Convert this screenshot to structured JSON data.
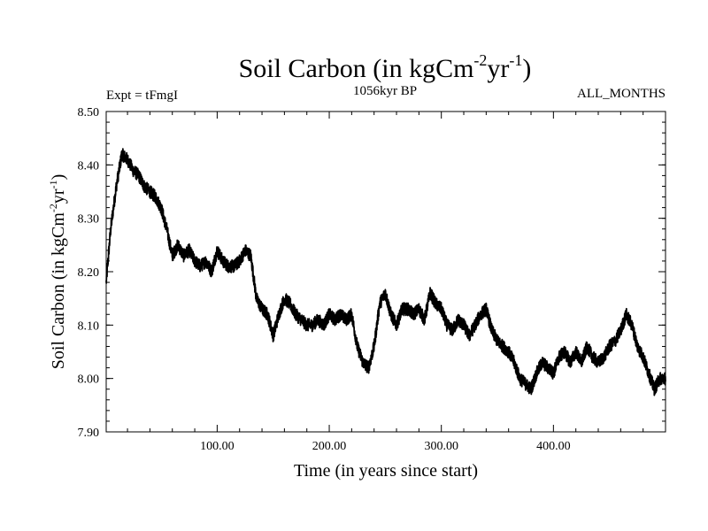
{
  "chart_data": {
    "type": "line",
    "title": "Soil Carbon (in kgCm-2yr-1)",
    "title_parts": {
      "main": "Soil Carbon (in kgCm",
      "exp1": "-2",
      "mid": "yr",
      "exp2": "-1",
      "end": ")"
    },
    "subtitle_left": "Expt = tFmgI",
    "subtitle_center": "1056kyr BP",
    "subtitle_right": "ALL_MONTHS",
    "xlabel": "Time (in years since start)",
    "ylabel": "Soil Carbon (in kgCm-2yr-1)",
    "ylabel_parts": {
      "main": "Soil Carbon (in kgCm",
      "exp1": "-2",
      "mid": "yr",
      "exp2": "-1",
      "end": ")"
    },
    "xlim": [
      1,
      500
    ],
    "ylim": [
      7.9,
      8.5
    ],
    "xticks": [
      100,
      200,
      300,
      400
    ],
    "xtick_labels": [
      "100.00",
      "200.00",
      "300.00",
      "400.00"
    ],
    "yticks": [
      7.9,
      8.0,
      8.1,
      8.2,
      8.3,
      8.4,
      8.5
    ],
    "ytick_labels": [
      "7.90",
      "8.00",
      "8.10",
      "8.20",
      "8.30",
      "8.40",
      "8.50"
    ],
    "series": [
      {
        "name": "Soil Carbon",
        "color": "#000000",
        "x": [
          1,
          5,
          10,
          15,
          20,
          25,
          30,
          35,
          40,
          45,
          50,
          55,
          60,
          65,
          70,
          75,
          80,
          85,
          90,
          95,
          100,
          105,
          110,
          115,
          120,
          125,
          130,
          135,
          140,
          145,
          150,
          155,
          160,
          165,
          170,
          175,
          180,
          185,
          190,
          195,
          200,
          205,
          210,
          215,
          220,
          225,
          230,
          235,
          240,
          245,
          250,
          255,
          260,
          265,
          270,
          275,
          280,
          285,
          290,
          295,
          300,
          305,
          310,
          315,
          320,
          325,
          330,
          335,
          340,
          345,
          350,
          355,
          360,
          365,
          370,
          375,
          380,
          385,
          390,
          395,
          400,
          405,
          410,
          415,
          420,
          425,
          430,
          435,
          440,
          445,
          450,
          455,
          460,
          465,
          470,
          475,
          480,
          485,
          490,
          495,
          500
        ],
        "y": [
          8.18,
          8.28,
          8.36,
          8.42,
          8.41,
          8.39,
          8.38,
          8.36,
          8.35,
          8.34,
          8.32,
          8.28,
          8.23,
          8.25,
          8.23,
          8.24,
          8.22,
          8.21,
          8.22,
          8.2,
          8.24,
          8.22,
          8.21,
          8.21,
          8.22,
          8.24,
          8.23,
          8.15,
          8.13,
          8.12,
          8.08,
          8.12,
          8.15,
          8.14,
          8.12,
          8.11,
          8.1,
          8.1,
          8.11,
          8.1,
          8.12,
          8.11,
          8.12,
          8.11,
          8.12,
          8.06,
          8.03,
          8.02,
          8.06,
          8.14,
          8.16,
          8.12,
          8.1,
          8.13,
          8.13,
          8.12,
          8.13,
          8.11,
          8.16,
          8.14,
          8.13,
          8.1,
          8.09,
          8.11,
          8.1,
          8.08,
          8.1,
          8.12,
          8.13,
          8.09,
          8.07,
          8.06,
          8.05,
          8.03,
          8.0,
          7.99,
          7.98,
          8.01,
          8.03,
          8.02,
          8.01,
          8.04,
          8.05,
          8.03,
          8.05,
          8.03,
          8.06,
          8.04,
          8.03,
          8.04,
          8.06,
          8.07,
          8.09,
          8.12,
          8.1,
          8.06,
          8.04,
          8.01,
          7.98,
          8.0,
          8.0
        ],
        "noise_amplitude": 0.012
      }
    ]
  }
}
